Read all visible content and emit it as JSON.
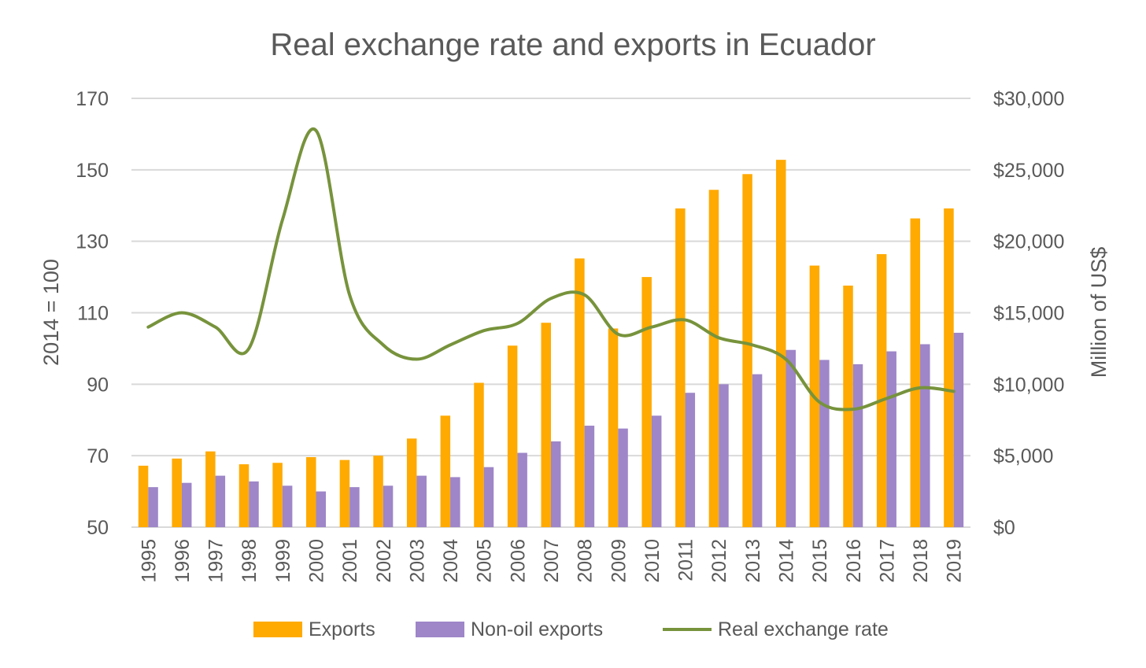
{
  "chart_data": {
    "type": "bar",
    "title": "Real exchange rate and exports in Ecuador",
    "ylabel": "2014 = 100",
    "y2label": "Million of US$",
    "ylim": [
      50,
      170
    ],
    "y2lim": [
      0,
      30000
    ],
    "yticks": [
      "170",
      "150",
      "130",
      "110",
      "90",
      "70",
      "50"
    ],
    "y2ticks": [
      "$30,000",
      "$25,000",
      "$20,000",
      "$15,000",
      "$10,000",
      "$5,000",
      "$0"
    ],
    "grid": true,
    "legend_position": "bottom",
    "categories": [
      "1995",
      "1996",
      "1997",
      "1998",
      "1999",
      "2000",
      "2001",
      "2002",
      "2003",
      "2004",
      "2005",
      "2006",
      "2007",
      "2008",
      "2009",
      "2010",
      "2011",
      "2012",
      "2013",
      "2014",
      "2015",
      "2016",
      "2017",
      "2018",
      "2019"
    ],
    "series": [
      {
        "name": "Exports",
        "type": "bar",
        "axis": "right",
        "color": "#ffaa00",
        "values": [
          4300,
          4800,
          5300,
          4400,
          4500,
          4900,
          4700,
          5000,
          6200,
          7800,
          10100,
          12700,
          14300,
          18800,
          13900,
          17500,
          22300,
          23600,
          24700,
          25700,
          18300,
          16900,
          19100,
          21600,
          22300
        ]
      },
      {
        "name": "Non-oil exports",
        "type": "bar",
        "axis": "right",
        "color": "#9e86c8",
        "values": [
          2800,
          3100,
          3600,
          3200,
          2900,
          2500,
          2800,
          2900,
          3600,
          3500,
          4200,
          5200,
          6000,
          7100,
          6900,
          7800,
          9400,
          10000,
          10700,
          12400,
          11700,
          11400,
          12300,
          12800,
          13600
        ]
      },
      {
        "name": "Real exchange rate",
        "type": "line",
        "axis": "left",
        "color": "#77933c",
        "values": [
          106,
          110,
          106,
          100,
          136,
          161,
          115,
          101,
          97,
          101,
          105,
          107,
          114,
          115,
          104,
          106,
          108,
          103,
          101,
          97,
          85,
          83,
          86,
          89,
          88
        ]
      }
    ]
  }
}
